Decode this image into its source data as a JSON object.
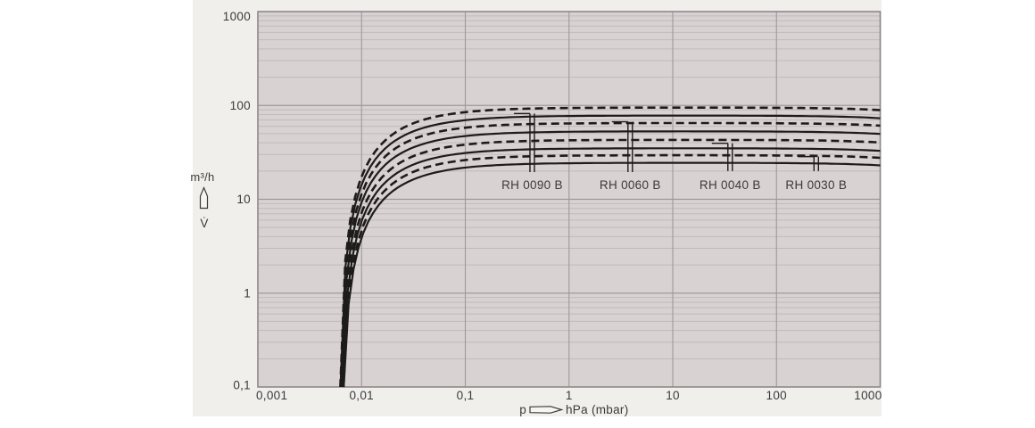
{
  "colors": {
    "page_bg": "#ffffff",
    "panel_bg": "#f0efeb",
    "plot_bg": "#d9d2d3",
    "grid_minor": "#c1babc",
    "grid_major": "#9f989a",
    "plot_border": "#8e888a",
    "curve": "#1d1b1b",
    "text": "#3a3a3a"
  },
  "chart_data": {
    "type": "line",
    "title": "",
    "x_axis": {
      "quantity": "p",
      "unit": "hPa (mbar)",
      "scale": "log",
      "range": [
        0.001,
        1000
      ],
      "ticks": [
        {
          "v": 0.001,
          "label": "0,001"
        },
        {
          "v": 0.01,
          "label": "0,01"
        },
        {
          "v": 0.1,
          "label": "0,1"
        },
        {
          "v": 1,
          "label": "1"
        },
        {
          "v": 10,
          "label": "10"
        },
        {
          "v": 100,
          "label": "100"
        },
        {
          "v": 1000,
          "label": "1000"
        }
      ]
    },
    "y_axis": {
      "unit": "m³/h",
      "quantity": "V̇",
      "scale": "log",
      "range": [
        0.1,
        1000
      ],
      "ticks": [
        {
          "v": 1000,
          "label": "1000"
        },
        {
          "v": 100,
          "label": "100"
        },
        {
          "v": 10,
          "label": "10"
        },
        {
          "v": 1,
          "label": "1"
        },
        {
          "v": 0.1,
          "label": "0,1"
        }
      ]
    },
    "grid": {
      "horizontal_minor_lines": true,
      "vertical_minor_lines": false,
      "legend": "none"
    },
    "series": [
      {
        "label": "RH 0090 B",
        "marker_p": 0.42,
        "marker_top_v": 82,
        "marker_bottom_v": 19.5,
        "curves": [
          {
            "style": "solid",
            "v_max": 78,
            "p_min": 0.0061
          },
          {
            "style": "dashed",
            "v_max": 95,
            "p_min": 0.0061
          }
        ]
      },
      {
        "label": "RH 0060 B",
        "marker_p": 3.7,
        "marker_top_v": 67,
        "marker_bottom_v": 19.5,
        "curves": [
          {
            "style": "solid",
            "v_max": 53,
            "p_min": 0.0062
          },
          {
            "style": "dashed",
            "v_max": 65,
            "p_min": 0.0062
          }
        ]
      },
      {
        "label": "RH 0040 B",
        "marker_p": 34,
        "marker_top_v": 39.5,
        "marker_bottom_v": 20,
        "curves": [
          {
            "style": "solid",
            "v_max": 35,
            "p_min": 0.0063
          },
          {
            "style": "dashed",
            "v_max": 43,
            "p_min": 0.0063
          }
        ]
      },
      {
        "label": "RH 0030 B",
        "marker_p": 230,
        "marker_top_v": 28.5,
        "marker_bottom_v": 20,
        "curves": [
          {
            "style": "solid",
            "v_max": 24.5,
            "p_min": 0.0064
          },
          {
            "style": "dashed",
            "v_max": 29.5,
            "p_min": 0.0064
          }
        ]
      }
    ]
  }
}
